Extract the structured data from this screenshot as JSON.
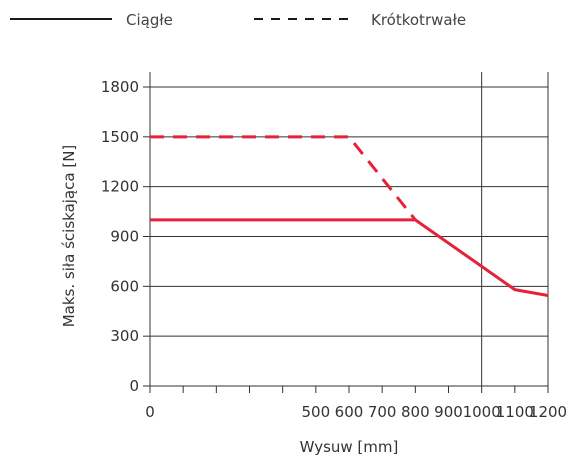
{
  "chart_data": {
    "type": "line",
    "title": "",
    "xlabel": "Wysuw [mm]",
    "ylabel": "Maks. siła ściskająca [N]",
    "xlim": [
      0,
      1200
    ],
    "ylim": [
      0,
      1800
    ],
    "x_ticks": [
      0,
      100,
      200,
      300,
      400,
      500,
      600,
      700,
      800,
      900,
      1000,
      1100,
      1200
    ],
    "x_tick_labels": [
      "0",
      "",
      "",
      "",
      "",
      "500",
      "600",
      "700",
      "800",
      "900",
      "1000",
      "1100",
      "1200"
    ],
    "y_ticks": [
      0,
      300,
      600,
      900,
      1200,
      1500,
      1800
    ],
    "y_tick_labels": [
      "0",
      "300",
      "600",
      "900",
      "1200",
      "1500",
      "1800"
    ],
    "gridlines_horizontal": [
      300,
      600,
      900,
      1200,
      1500,
      1800
    ],
    "gridlines_vertical": [
      1000
    ],
    "legend": {
      "position": "top",
      "items": [
        {
          "label": "Ciągłe",
          "style": "solid"
        },
        {
          "label": "Krótkotrwałe",
          "style": "dashed"
        }
      ]
    },
    "series": [
      {
        "name": "Ciągłe",
        "style": "solid",
        "color": "#e5223a",
        "points": [
          [
            0,
            1000
          ],
          [
            800,
            1000
          ],
          [
            1000,
            720
          ],
          [
            1100,
            580
          ],
          [
            1200,
            545
          ]
        ]
      },
      {
        "name": "Krótkotrwałe",
        "style": "dashed",
        "color": "#e5223a",
        "points": [
          [
            0,
            1500
          ],
          [
            600,
            1500
          ],
          [
            800,
            1000
          ]
        ]
      }
    ],
    "colors": {
      "series": "#e5223a",
      "grid": "#333333",
      "axis": "#333333",
      "legend_line": "#1a1a1a"
    }
  }
}
